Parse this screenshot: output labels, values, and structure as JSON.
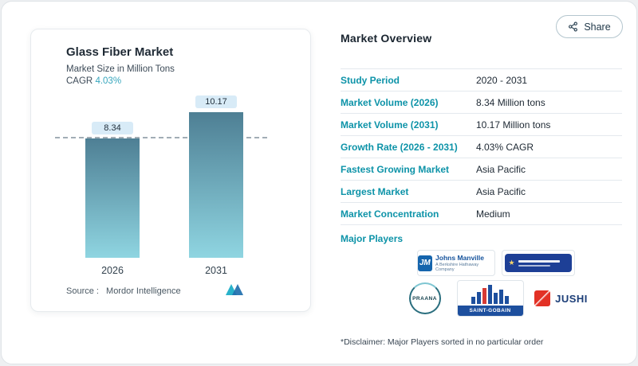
{
  "share": {
    "label": "Share"
  },
  "chart_card": {
    "title": "Glass Fiber Market",
    "subtitle": "Market Size in Million Tons",
    "cagr_label": "CAGR",
    "cagr_value": "4.03%",
    "source_label": "Source :",
    "source_value": "Mordor Intelligence"
  },
  "chart_data": {
    "type": "bar",
    "title": "Glass Fiber Market",
    "ylabel": "Market Size in Million Tons",
    "categories": [
      "2026",
      "2031"
    ],
    "values": [
      8.34,
      10.17
    ],
    "reference_value": 8.34,
    "ylim": [
      0,
      11
    ],
    "grid": false,
    "bar_color_gradient": [
      "#4e7f94",
      "#8fd5e1"
    ],
    "value_label_bg": "#d8ebf7",
    "accent_teal": "#0d93a8"
  },
  "overview": {
    "title": "Market Overview",
    "rows": [
      {
        "label": "Study Period",
        "value": "2020 - 2031"
      },
      {
        "label": "Market Volume (2026)",
        "value": "8.34 Million tons"
      },
      {
        "label": "Market Volume (2031)",
        "value": "10.17 Million tons"
      },
      {
        "label": "Growth Rate (2026 - 2031)",
        "value": "4.03% CAGR"
      },
      {
        "label": "Fastest Growing Market",
        "value": "Asia Pacific"
      },
      {
        "label": "Largest Market",
        "value": "Asia Pacific"
      },
      {
        "label": "Market Concentration",
        "value": "Medium"
      }
    ],
    "players": {
      "label": "Major Players",
      "items": [
        {
          "abbr": "JM",
          "name": "Johns Manville",
          "tagline": "A Berkshire Hathaway Company"
        },
        {
          "name": "Chinese company (illegible logo text)"
        },
        {
          "name": "PRAANA"
        },
        {
          "name": "SAINT-GOBAIN"
        },
        {
          "name": "JUSHI"
        }
      ],
      "disclaimer": "*Disclaimer: Major Players sorted in no particular order"
    }
  }
}
